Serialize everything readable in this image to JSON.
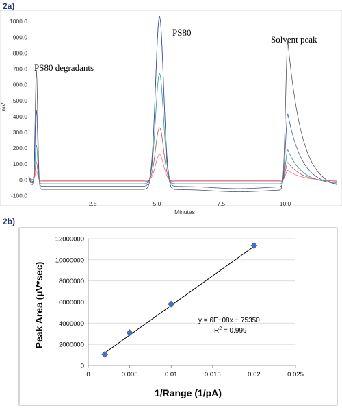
{
  "panel_a": {
    "label": "2a)"
  },
  "panel_b": {
    "label": "2b)"
  },
  "colors": {
    "trace_gray": "#555555",
    "trace_blue": "#3a56b0",
    "trace_teal": "#2f9a9a",
    "trace_red": "#d64545",
    "trace_pink": "#e07090",
    "marker": "#4472c4",
    "fit_line": "#000000",
    "gridline": "#d9d9d9",
    "frame": "#999999"
  },
  "chart_data": [
    {
      "type": "line",
      "title": "",
      "xlabel": "Minutes",
      "ylabel": "mV",
      "xlim": [
        0,
        12
      ],
      "ylim": [
        -120,
        1040
      ],
      "x_ticks": [
        2.5,
        5.0,
        7.5,
        10.0
      ],
      "x_tick_labels": [
        "2.5",
        "5.0",
        "7.5",
        "10.0"
      ],
      "y_ticks": [
        -100,
        0,
        100,
        200,
        300,
        400,
        500,
        600,
        700,
        800,
        900,
        1000
      ],
      "y_tick_labels": [
        "-100.0",
        "0.0",
        "100.0",
        "200.0",
        "300.0",
        "400.0",
        "500.0",
        "600.0",
        "700.0",
        "800.0",
        "900.0",
        "1000.0"
      ],
      "grid": false,
      "annotations": [
        {
          "text": "PS80 degradants",
          "x": 0.45,
          "y": 640
        },
        {
          "text": "PS80",
          "x": 5.6,
          "y": 1000
        },
        {
          "text": "Solvent peak",
          "x": 9.0,
          "y": 920
        }
      ],
      "series": [
        {
          "color": "trace_gray",
          "baseline": -60,
          "peaks": [
            [
              0.3,
              690
            ],
            [
              5.1,
              1030
            ],
            [
              10.1,
              880
            ]
          ]
        },
        {
          "color": "trace_blue",
          "baseline": -40,
          "peaks": [
            [
              0.3,
              440
            ],
            [
              5.1,
              1030
            ],
            [
              10.1,
              420
            ]
          ]
        },
        {
          "color": "trace_teal",
          "baseline": -25,
          "peaks": [
            [
              0.3,
              220
            ],
            [
              5.1,
              670
            ],
            [
              10.1,
              190
            ]
          ]
        },
        {
          "color": "trace_red",
          "baseline": -12,
          "peaks": [
            [
              0.3,
              110
            ],
            [
              5.1,
              330
            ],
            [
              10.1,
              110
            ]
          ]
        },
        {
          "color": "trace_pink",
          "baseline": -5,
          "peaks": [
            [
              0.3,
              55
            ],
            [
              5.1,
              160
            ],
            [
              10.1,
              60
            ]
          ]
        }
      ]
    },
    {
      "type": "scatter",
      "title": "",
      "xlabel": "1/Range (1/pA)",
      "ylabel": "Peak Area (µV*sec)",
      "xlim": [
        0,
        0.025
      ],
      "ylim": [
        0,
        12000000
      ],
      "x_ticks": [
        0,
        0.005,
        0.01,
        0.015,
        0.02,
        0.025
      ],
      "x_tick_labels": [
        "0",
        "0.005",
        "0.01",
        "0.015",
        "0.02",
        "0.025"
      ],
      "y_ticks": [
        0,
        2000000,
        4000000,
        6000000,
        8000000,
        10000000,
        12000000
      ],
      "y_tick_labels": [
        "0",
        "2000000",
        "4000000",
        "6000000",
        "8000000",
        "10000000",
        "12000000"
      ],
      "grid": true,
      "points": [
        {
          "x": 0.002,
          "y": 1050000
        },
        {
          "x": 0.005,
          "y": 3100000
        },
        {
          "x": 0.01,
          "y": 5800000
        },
        {
          "x": 0.02,
          "y": 11350000
        }
      ],
      "trendline": {
        "slope": 560000000,
        "intercept": 75350,
        "x_range": [
          0.002,
          0.02
        ]
      },
      "equation": "y = 6E+08x + 75350",
      "r_squared_label": "R",
      "r_squared_sup": "2",
      "r_squared_value": " = 0.999"
    }
  ]
}
